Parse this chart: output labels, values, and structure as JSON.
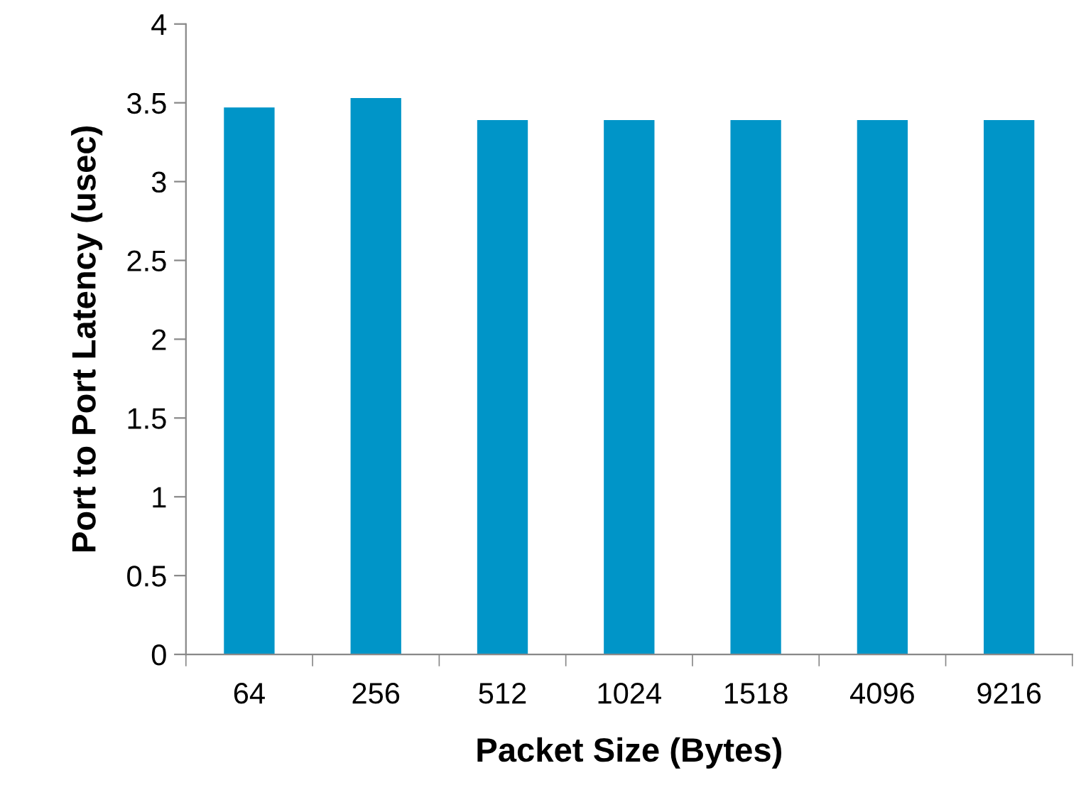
{
  "chart_data": {
    "type": "bar",
    "xlabel": "Packet Size (Bytes)",
    "ylabel": "Port to Port Latency (usec)",
    "categories": [
      "64",
      "256",
      "512",
      "1024",
      "1518",
      "4096",
      "9216"
    ],
    "values": [
      3.47,
      3.53,
      3.39,
      3.39,
      3.39,
      3.39,
      3.39
    ],
    "color": "#0095c8",
    "ylim": [
      0,
      4
    ],
    "yticks": [
      0,
      0.5,
      1,
      1.5,
      2,
      2.5,
      3,
      3.5,
      4
    ],
    "grid": false,
    "legend": false
  }
}
